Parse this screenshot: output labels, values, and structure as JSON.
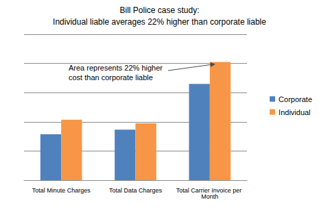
{
  "chart_data": {
    "type": "bar",
    "title": "Bill Police case study:",
    "subtitle": "Individual liable averages 22% higher than corporate liable",
    "annotation": "Area represents 22% higher\ncost than corporate liable",
    "categories": [
      "Total Minute Charges",
      "Total Data Charges",
      "Total Carrier Invoice per Month"
    ],
    "series": [
      {
        "name": "Corporate",
        "color": "#4f81bd",
        "values": [
          1.57,
          1.73,
          3.3
        ]
      },
      {
        "name": "Individual",
        "color": "#f79646",
        "values": [
          2.07,
          1.95,
          4.05
        ]
      }
    ],
    "ylim": [
      0,
      5
    ],
    "yticks": [
      0,
      1,
      2,
      3,
      4,
      5
    ],
    "grid": true,
    "legend": "right",
    "tick_labels": "x"
  }
}
